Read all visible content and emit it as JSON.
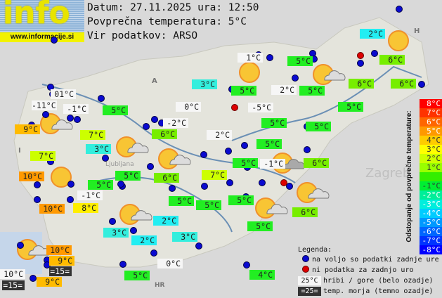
{
  "header": {
    "date_line": "Datum: 27.11.2025 ura: 12:50",
    "avg_line": "Povprečna temperatura: 5°C",
    "source_line": "Vir podatkov: ARSO"
  },
  "logo": {
    "word": "info",
    "url": "www.informacije.si"
  },
  "map_places": {
    "ljubljana": "Ljubljana",
    "zagreb": "Zagreb",
    "country_a": "A",
    "country_h": "H",
    "country_i": "I",
    "country_hr": "HR"
  },
  "labels": [
    {
      "text": "2°C",
      "bg": "#22eef2"
    },
    {
      "text": "1°C",
      "bg": "#f6f6f6"
    },
    {
      "text": "5°C",
      "bg": "#22ee22"
    },
    {
      "text": "6°C",
      "bg": "#77ee00"
    },
    {
      "text": "3°C",
      "bg": "#33eedd"
    },
    {
      "text": "5°C",
      "bg": "#22ee22"
    },
    {
      "text": "2°C",
      "bg": "#f6f6f6"
    },
    {
      "text": "5°C",
      "bg": "#22ee22"
    },
    {
      "text": "6°C",
      "bg": "#77ee00"
    },
    {
      "text": "6°C",
      "bg": "#77ee00"
    },
    {
      "text": "01°C",
      "bg": "#f6f6f6"
    },
    {
      "text": "-11°C",
      "bg": "#f6f6f6"
    },
    {
      "text": "-1°C",
      "bg": "#f6f6f6"
    },
    {
      "text": "5°C",
      "bg": "#22ee22"
    },
    {
      "text": "0°C",
      "bg": "#f6f6f6"
    },
    {
      "text": "-5°C",
      "bg": "#f6f6f6"
    },
    {
      "text": "5°C",
      "bg": "#22ee22"
    },
    {
      "text": "5°C",
      "bg": "#22ee22"
    },
    {
      "text": "5°C",
      "bg": "#22ee22"
    },
    {
      "text": "9°C",
      "bg": "#ffbb00"
    },
    {
      "text": "-2°C",
      "bg": "#f6f6f6"
    },
    {
      "text": "7°C",
      "bg": "#ccff00"
    },
    {
      "text": "6°C",
      "bg": "#77ee00"
    },
    {
      "text": "2°C",
      "bg": "#f6f6f6"
    },
    {
      "text": "5°C",
      "bg": "#22ee22"
    },
    {
      "text": "3°C",
      "bg": "#33eedd"
    },
    {
      "text": "7°C",
      "bg": "#ccff00"
    },
    {
      "text": "5°C",
      "bg": "#22ee22"
    },
    {
      "text": "-1°C",
      "bg": "#f6f6f6"
    },
    {
      "text": "6°C",
      "bg": "#77ee00"
    },
    {
      "text": "10°C",
      "bg": "#ff9900"
    },
    {
      "text": "5°C",
      "bg": "#22ee22"
    },
    {
      "text": "6°C",
      "bg": "#77ee00"
    },
    {
      "text": "7°C",
      "bg": "#ccff00"
    },
    {
      "text": "5°C",
      "bg": "#22ee22"
    },
    {
      "text": "-1°C",
      "bg": "#f6f6f6"
    },
    {
      "text": "5°C",
      "bg": "#22ee22"
    },
    {
      "text": "5°C",
      "bg": "#22ee22"
    },
    {
      "text": "5°C",
      "bg": "#22ee22"
    },
    {
      "text": "6°C",
      "bg": "#77ee00"
    },
    {
      "text": "10°C",
      "bg": "#ff9900"
    },
    {
      "text": "8°C",
      "bg": "#ffee00"
    },
    {
      "text": "2°C",
      "bg": "#22eef2"
    },
    {
      "text": "5°C",
      "bg": "#22ee22"
    },
    {
      "text": "3°C",
      "bg": "#33eedd"
    },
    {
      "text": "2°C",
      "bg": "#22eef2"
    },
    {
      "text": "3°C",
      "bg": "#33eedd"
    },
    {
      "text": "10°C",
      "bg": "#ff9900"
    },
    {
      "text": "9°C",
      "bg": "#ffbb00"
    },
    {
      "text": "=15=",
      "bg": "#333333"
    },
    {
      "text": "10°C",
      "bg": "#f6f6f6"
    },
    {
      "text": "9°C",
      "bg": "#ffbb00"
    },
    {
      "text": "=15=",
      "bg": "#333333"
    },
    {
      "text": "0°C",
      "bg": "#f6f6f6"
    },
    {
      "text": "5°C",
      "bg": "#22ee22"
    },
    {
      "text": "4°C",
      "bg": "#22ee22"
    }
  ],
  "scale": {
    "title": "Odstopanje od povprečne temperature:",
    "steps": [
      {
        "t": "8°C",
        "c": "#ff0000"
      },
      {
        "t": "7°C",
        "c": "#ff3300"
      },
      {
        "t": "6°C",
        "c": "#ff6600"
      },
      {
        "t": "5°C",
        "c": "#ff9900"
      },
      {
        "t": "4°C",
        "c": "#ffcc00"
      },
      {
        "t": "3°C",
        "c": "#ffff00"
      },
      {
        "t": "2°C",
        "c": "#ccff00"
      },
      {
        "t": "1°C",
        "c": "#99ff00"
      },
      {
        "t": "",
        "c": "#33ee00"
      },
      {
        "t": "-1°C",
        "c": "#00ee33"
      },
      {
        "t": "-2°C",
        "c": "#00ee99"
      },
      {
        "t": "-3°C",
        "c": "#00eedd"
      },
      {
        "t": "-4°C",
        "c": "#00ccff"
      },
      {
        "t": "-5°C",
        "c": "#0099ff"
      },
      {
        "t": "-6°C",
        "c": "#0066ff"
      },
      {
        "t": "-7°C",
        "c": "#0033ff"
      },
      {
        "t": "-8°C",
        "c": "#0000ff"
      }
    ]
  },
  "legend": {
    "title": "Legenda:",
    "available": "na voljo so podatki zadnje ure",
    "missing": "ni podatka za zadnjo uro",
    "hill_sample": "25°C",
    "hill_text": "hribi / gore (belo ozadje)",
    "sea_sample": "=25=",
    "sea_text": "temp. morja (temno ozadje)"
  },
  "colors": {
    "station_ok": "#0a0ad0",
    "station_missing": "#dd0000"
  }
}
